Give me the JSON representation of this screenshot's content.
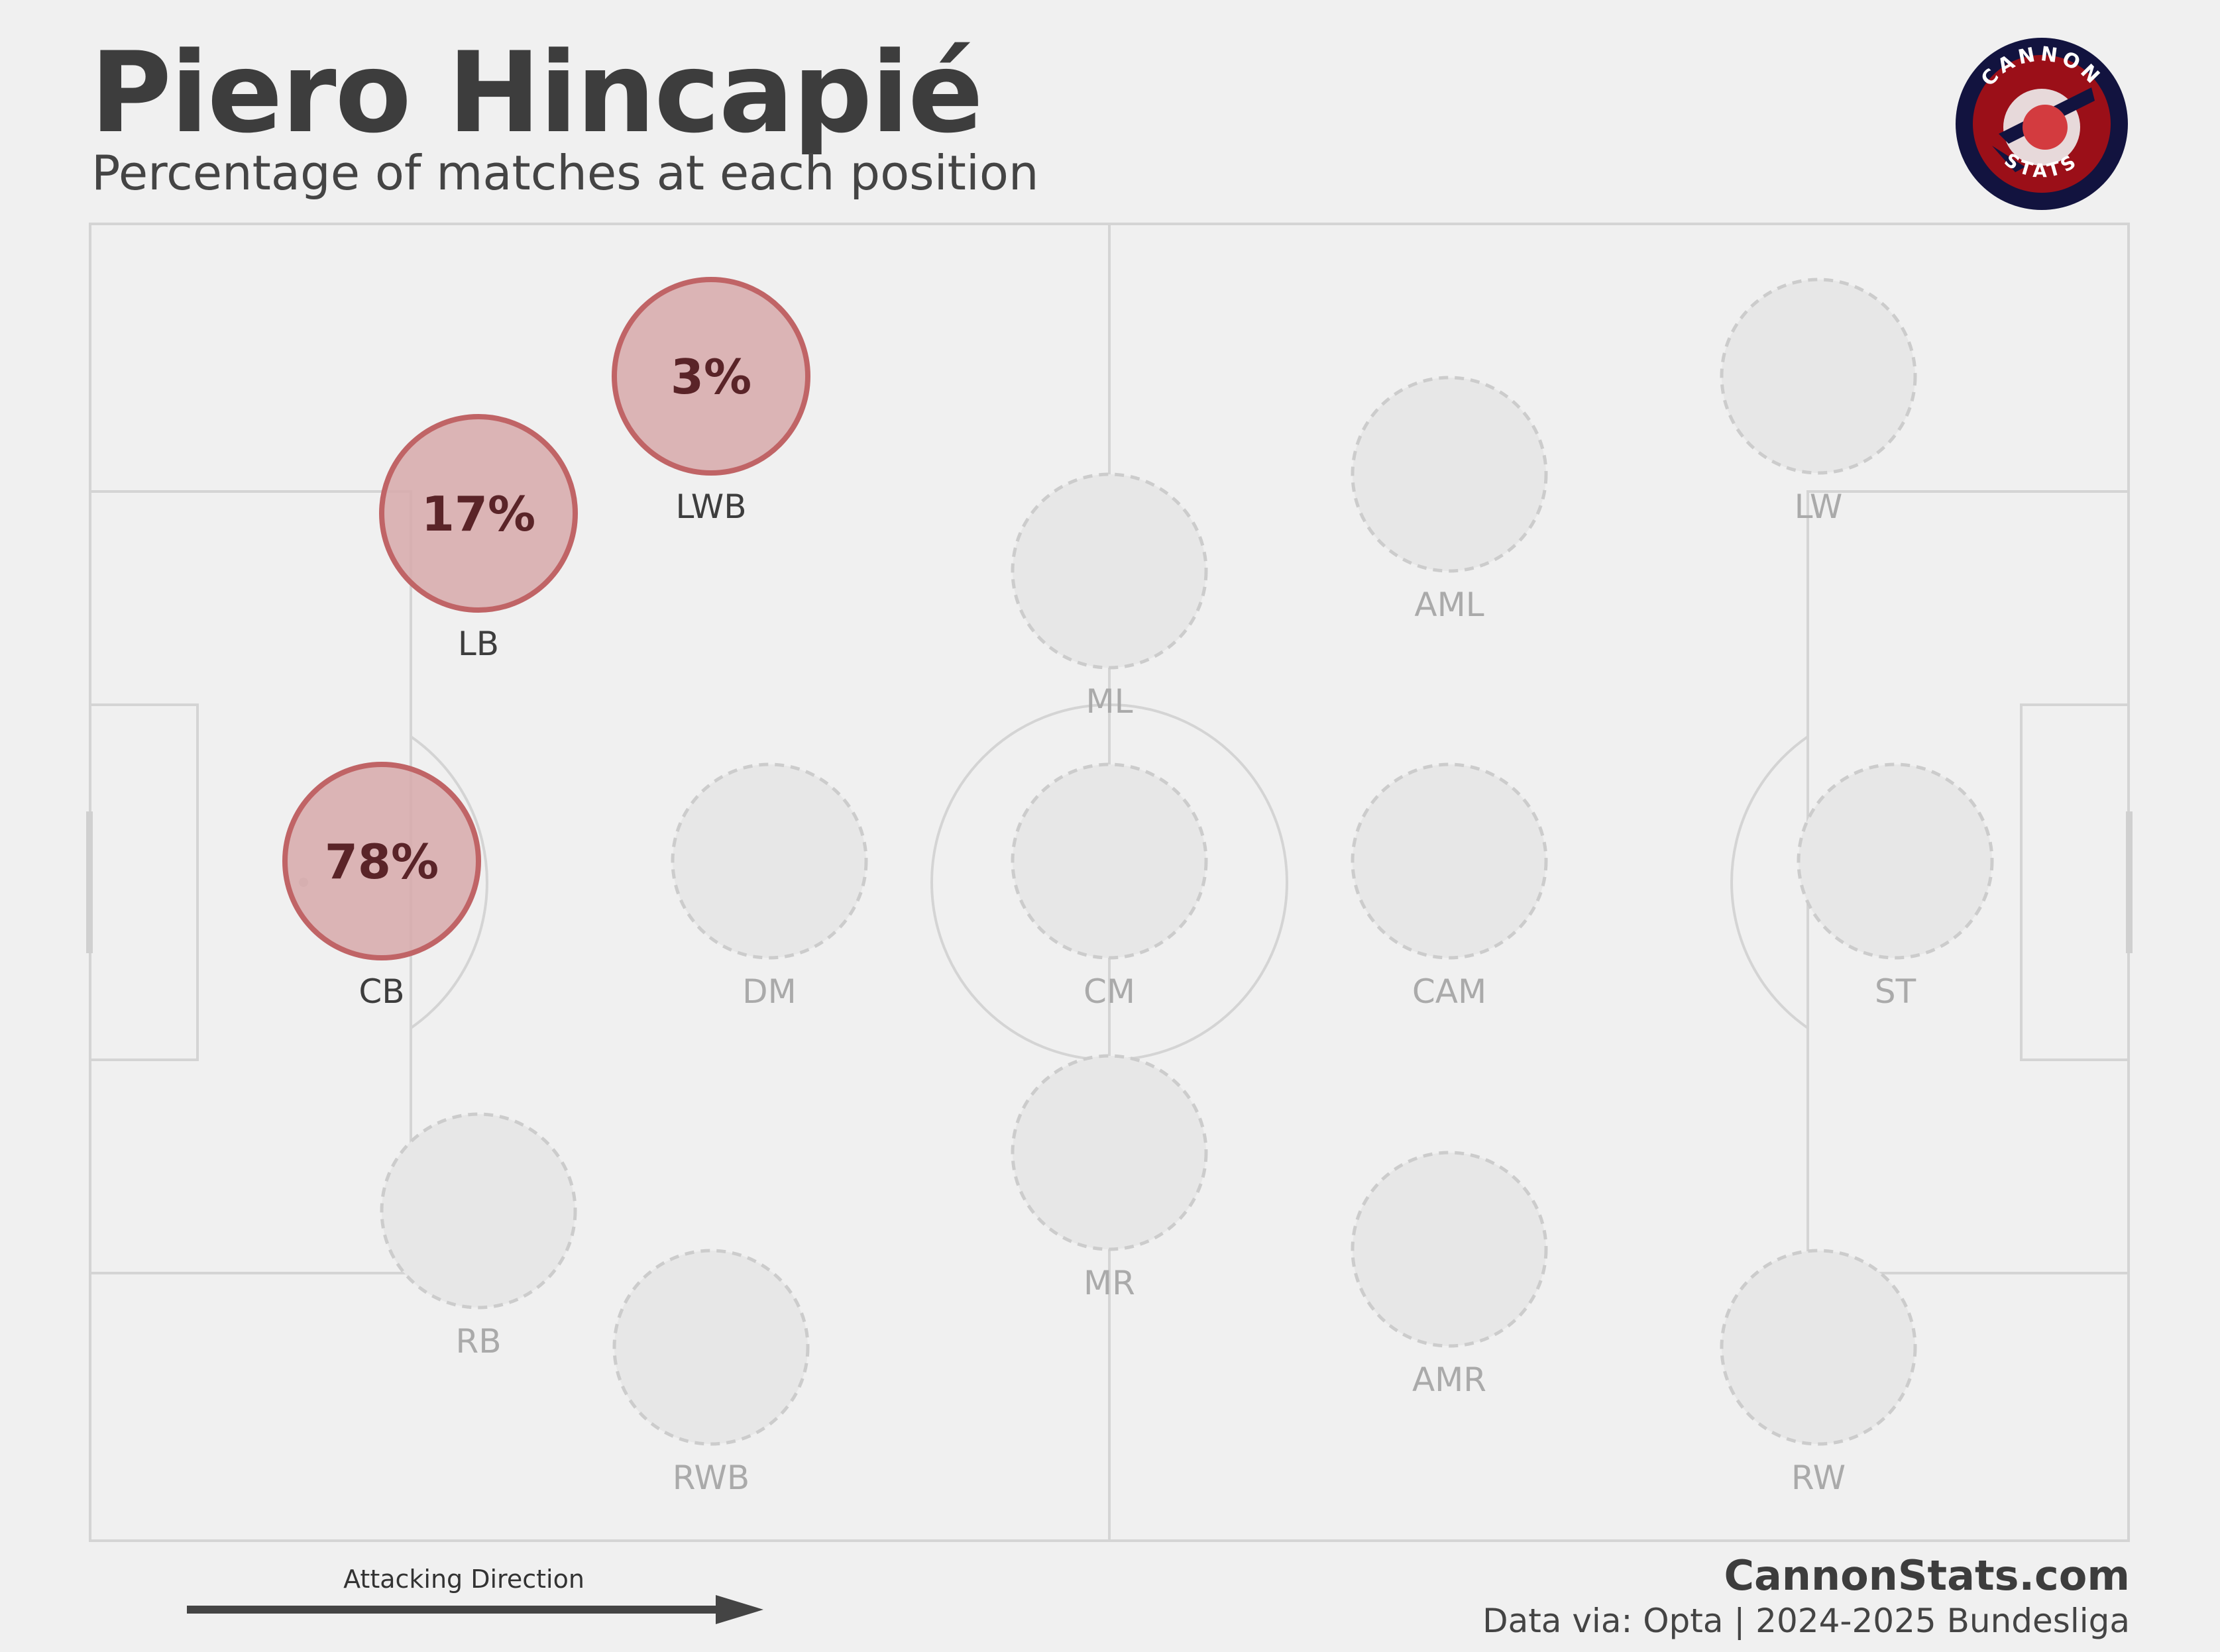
{
  "header": {
    "title": "Piero Hincapié",
    "subtitle": "Percentage of matches at each position"
  },
  "logo": {
    "top_text": "CANNON",
    "bottom_text": "STATS"
  },
  "footer": {
    "site": "CannonStats.com",
    "source": "Data via: Opta | 2024-2025 Bundesliga",
    "attacking_direction": "Attacking Direction"
  },
  "colors": {
    "background": "#f0f0f0",
    "pitch_lines": "#d4d4d4",
    "active_fill": "#d7a9aa",
    "active_stroke": "#c06466",
    "active_text": "#5a2428",
    "inactive_fill": "#e7e7e7",
    "inactive_stroke": "#cccccc",
    "inactive_label": "#aaaaaa"
  },
  "chart_data": {
    "type": "pitch-position",
    "unit": "%",
    "positions": [
      {
        "code": "CB",
        "value": 78
      },
      {
        "code": "LB",
        "value": 17
      },
      {
        "code": "LWB",
        "value": 3
      },
      {
        "code": "RB",
        "value": null
      },
      {
        "code": "RWB",
        "value": null
      },
      {
        "code": "DM",
        "value": null
      },
      {
        "code": "ML",
        "value": null
      },
      {
        "code": "CM",
        "value": null
      },
      {
        "code": "MR",
        "value": null
      },
      {
        "code": "AML",
        "value": null
      },
      {
        "code": "CAM",
        "value": null
      },
      {
        "code": "AMR",
        "value": null
      },
      {
        "code": "LW",
        "value": null
      },
      {
        "code": "ST",
        "value": null
      },
      {
        "code": "RW",
        "value": null
      }
    ]
  }
}
